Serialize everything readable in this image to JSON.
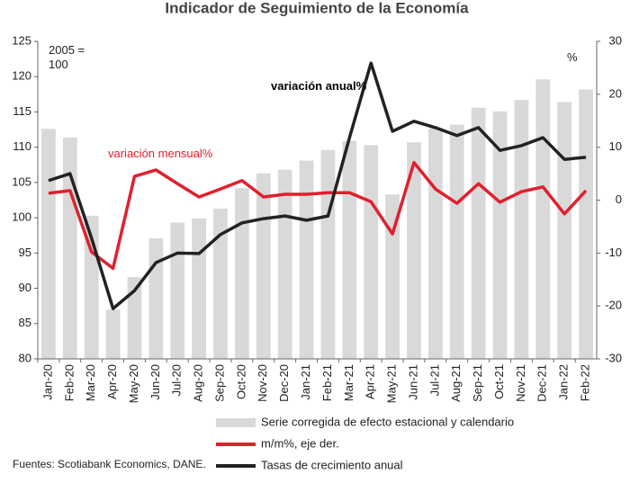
{
  "chart_data": {
    "type": "bar",
    "title": "Indicador de Seguimiento de la Economía",
    "categories": [
      "Jan-20",
      "Feb-20",
      "Mar-20",
      "Apr-20",
      "May-20",
      "Jun-20",
      "Jul-20",
      "Aug-20",
      "Sep-20",
      "Oct-20",
      "Nov-20",
      "Dec-20",
      "Jan-21",
      "Feb-21",
      "Mar-21",
      "Apr-21",
      "May-21",
      "Jun-21",
      "Jul-21",
      "Aug-21",
      "Sep-21",
      "Oct-21",
      "Nov-21",
      "Dec-21",
      "Jan-22",
      "Feb-22"
    ],
    "series": [
      {
        "name": "Serie corregida de efecto estacional y calendario",
        "type": "bar",
        "axis": "y",
        "color": "#d9d9d9",
        "values": [
          112.6,
          111.4,
          100.3,
          87,
          91.6,
          97.1,
          99.3,
          99.9,
          101.3,
          104.2,
          106.3,
          106.8,
          108.1,
          109.6,
          110.9,
          110.3,
          103.3,
          110.7,
          112.7,
          113.2,
          115.6,
          115.1,
          116.7,
          119.6,
          116.4,
          118.2
        ]
      },
      {
        "name": "m/m%, eje der.",
        "type": "line",
        "axis": "y2",
        "color": "#e0202e",
        "values": [
          1.3,
          1.8,
          -9.8,
          -12.9,
          4.5,
          5.7,
          3.1,
          0.6,
          2.1,
          3.7,
          0.6,
          1.1,
          1.1,
          1.4,
          1.4,
          -0.3,
          -6.4,
          7.1,
          2.1,
          -0.6,
          3.1,
          -0.4,
          1.6,
          2.5,
          -2.6,
          1.8
        ]
      },
      {
        "name": "Tasas de crecimiento anual",
        "type": "line",
        "axis": "y2",
        "color": "#222222",
        "values": [
          3.7,
          5.0,
          -7.2,
          -20.5,
          -17.1,
          -11.8,
          -10,
          -10.1,
          -6.5,
          -4.3,
          -3.5,
          -3,
          -3.8,
          -3,
          11.8,
          25.9,
          13,
          14.9,
          13.7,
          12.2,
          13.7,
          9.4,
          10.3,
          11.8,
          7.7,
          8.1
        ]
      }
    ],
    "ylim": [
      80,
      125
    ],
    "yticks": [
      80,
      85,
      90,
      95,
      100,
      105,
      110,
      115,
      120,
      125
    ],
    "y2lim": [
      -30,
      30
    ],
    "y2ticks": [
      -30,
      -20,
      -10,
      0,
      10,
      20,
      30
    ],
    "annotations": [
      "2005 = 100",
      "%",
      "variación anual%",
      "variación mensual%"
    ],
    "source": "Fuentes: Scotiabank Economics, DANE."
  }
}
